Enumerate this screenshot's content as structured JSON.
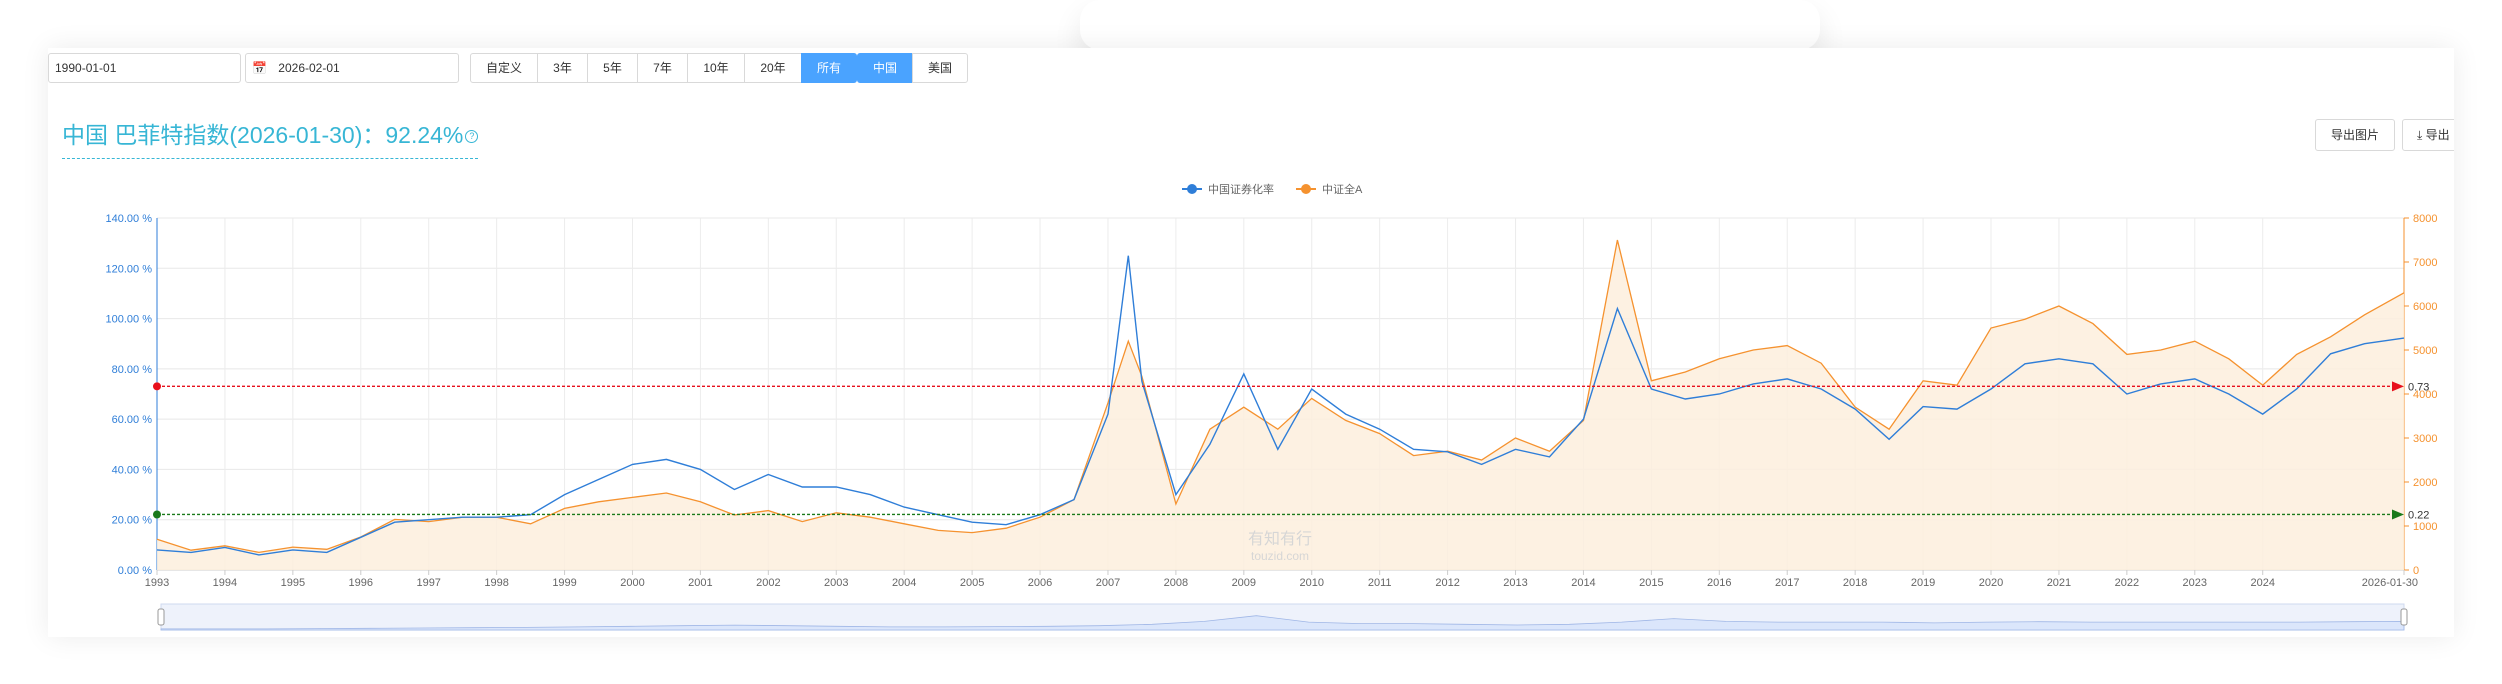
{
  "filters": {
    "start_date": "1990-01-01",
    "end_date": "2026-02-01",
    "range_buttons": [
      {
        "label": "自定义",
        "active": false
      },
      {
        "label": "3年",
        "active": false
      },
      {
        "label": "5年",
        "active": false
      },
      {
        "label": "7年",
        "active": false
      },
      {
        "label": "10年",
        "active": false
      },
      {
        "label": "20年",
        "active": false
      },
      {
        "label": "所有",
        "active": true
      }
    ],
    "market_buttons": [
      {
        "label": "中国",
        "active": true
      },
      {
        "label": "美国",
        "active": false
      }
    ]
  },
  "header": {
    "title": "中国 巴菲特指数(2026-01-30)：92.24%",
    "help_icon": "question-circle-icon",
    "export_image_label": "导出图片",
    "export_data_label": "导出",
    "export_data_icon": "download-icon"
  },
  "watermark": {
    "line1": "有知有行",
    "line2": "touzid.com"
  },
  "colors": {
    "accent": "#4aa3ff",
    "title": "#37b6d5",
    "ratio_series": "#2f7ed8",
    "index_series": "#f5922f",
    "index_fill": "#fdeedd",
    "upper_line": "#e8101c",
    "lower_line": "#1a7a1a",
    "navigator_fill": "#dbe6fb"
  },
  "chart_data": {
    "type": "line",
    "title": "中国 巴菲特指数(2026-01-30)：92.24%",
    "legend_position": "top-center",
    "grid": true,
    "x_ticks": [
      "1993",
      "1994",
      "1995",
      "1996",
      "1997",
      "1998",
      "1999",
      "2000",
      "2001",
      "2002",
      "2003",
      "2004",
      "2005",
      "2006",
      "2007",
      "2008",
      "2009",
      "2010",
      "2011",
      "2012",
      "2013",
      "2014",
      "2015",
      "2016",
      "2017",
      "2018",
      "2019",
      "2020",
      "2021",
      "2022",
      "2023",
      "2024",
      "2026-01-30"
    ],
    "x_range": [
      1993,
      2026.08
    ],
    "y_left": {
      "range": [
        0,
        140
      ],
      "ticks": [
        "0.00 %",
        "20.00 %",
        "40.00 %",
        "60.00 %",
        "80.00 %",
        "100.00 %",
        "120.00 %",
        "140.00 %"
      ]
    },
    "y_right": {
      "range": [
        0,
        8000
      ],
      "ticks": [
        "0",
        "1000",
        "2000",
        "3000",
        "4000",
        "5000",
        "6000",
        "7000",
        "8000"
      ]
    },
    "series": [
      {
        "name": "中国证券化率",
        "axis": "left",
        "x": [
          1993.0,
          1993.5,
          1994.0,
          1994.5,
          1995.0,
          1995.5,
          1996.0,
          1996.5,
          1997.0,
          1997.5,
          1998.0,
          1998.5,
          1999.0,
          1999.5,
          2000.0,
          2000.5,
          2001.0,
          2001.5,
          2002.0,
          2002.5,
          2003.0,
          2003.5,
          2004.0,
          2004.5,
          2005.0,
          2005.5,
          2006.0,
          2006.5,
          2007.0,
          2007.3,
          2007.5,
          2008.0,
          2008.5,
          2009.0,
          2009.5,
          2010.0,
          2010.5,
          2011.0,
          2011.5,
          2012.0,
          2012.5,
          2013.0,
          2013.5,
          2014.0,
          2014.5,
          2015.0,
          2015.5,
          2016.0,
          2016.5,
          2017.0,
          2017.5,
          2018.0,
          2018.5,
          2019.0,
          2019.5,
          2020.0,
          2020.5,
          2021.0,
          2021.5,
          2022.0,
          2022.5,
          2023.0,
          2023.5,
          2024.0,
          2024.5,
          2025.0,
          2025.5,
          2026.08
        ],
        "values": [
          8,
          7,
          9,
          6,
          8,
          7,
          13,
          19,
          20,
          21,
          21,
          22,
          30,
          36,
          42,
          44,
          40,
          32,
          38,
          33,
          33,
          30,
          25,
          22,
          19,
          18,
          22,
          28,
          62,
          125,
          75,
          30,
          50,
          78,
          48,
          72,
          62,
          56,
          48,
          47,
          42,
          48,
          45,
          60,
          104,
          72,
          68,
          70,
          74,
          76,
          72,
          64,
          52,
          65,
          64,
          72,
          82,
          84,
          82,
          70,
          74,
          76,
          70,
          62,
          72,
          86,
          90,
          92.24
        ]
      },
      {
        "name": "中证全A",
        "axis": "right",
        "x": [
          1993.0,
          1993.5,
          1994.0,
          1994.5,
          1995.0,
          1995.5,
          1996.0,
          1996.5,
          1997.0,
          1997.5,
          1998.0,
          1998.5,
          1999.0,
          1999.5,
          2000.0,
          2000.5,
          2001.0,
          2001.5,
          2002.0,
          2002.5,
          2003.0,
          2003.5,
          2004.0,
          2004.5,
          2005.0,
          2005.5,
          2006.0,
          2006.5,
          2007.0,
          2007.3,
          2007.5,
          2008.0,
          2008.5,
          2009.0,
          2009.5,
          2010.0,
          2010.5,
          2011.0,
          2011.5,
          2012.0,
          2012.5,
          2013.0,
          2013.5,
          2014.0,
          2014.5,
          2015.0,
          2015.5,
          2016.0,
          2016.5,
          2017.0,
          2017.5,
          2018.0,
          2018.5,
          2019.0,
          2019.5,
          2020.0,
          2020.5,
          2021.0,
          2021.5,
          2022.0,
          2022.5,
          2023.0,
          2023.5,
          2024.0,
          2024.5,
          2025.0,
          2025.5,
          2026.08
        ],
        "values": [
          700,
          450,
          550,
          400,
          520,
          470,
          750,
          1150,
          1100,
          1200,
          1200,
          1050,
          1400,
          1550,
          1650,
          1750,
          1550,
          1250,
          1350,
          1100,
          1300,
          1200,
          1050,
          900,
          850,
          950,
          1200,
          1600,
          3800,
          5200,
          4400,
          1500,
          3200,
          3700,
          3200,
          3900,
          3400,
          3100,
          2600,
          2700,
          2500,
          3000,
          2700,
          3400,
          7500,
          4300,
          4500,
          4800,
          5000,
          5100,
          4700,
          3700,
          3200,
          4300,
          4200,
          5500,
          5700,
          6000,
          5600,
          4900,
          5000,
          5200,
          4800,
          4200,
          4900,
          5300,
          5800,
          6300
        ]
      }
    ],
    "reference_lines": [
      {
        "label": "0.73",
        "value": 73.04,
        "axis": "left"
      },
      {
        "label": "0.22",
        "value": 22.08,
        "axis": "left"
      }
    ],
    "navigator": {
      "values": [
        8,
        8,
        8,
        10,
        12,
        14,
        16,
        18,
        22,
        26,
        30,
        34,
        30,
        26,
        22,
        22,
        24,
        26,
        30,
        40,
        60,
        100,
        55,
        45,
        45,
        40,
        35,
        40,
        55,
        80,
        60,
        55,
        55,
        55,
        50,
        55,
        58,
        55,
        55,
        55,
        55,
        55,
        58,
        60
      ]
    }
  }
}
